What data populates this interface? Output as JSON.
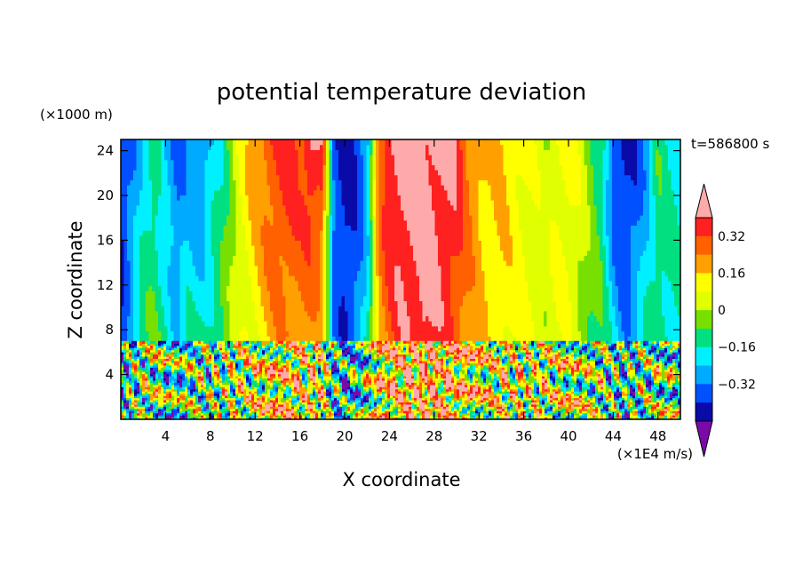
{
  "chart_data": {
    "type": "heatmap",
    "title": "potential temperature deviation",
    "xlabel": "X coordinate",
    "ylabel": "Z coordinate",
    "x_units": "(×1E4 m/s)",
    "y_units": "(×1000 m)",
    "time_label": "t=586800 s",
    "xlim": [
      0,
      50
    ],
    "ylim": [
      0,
      25
    ],
    "x_ticks": [
      4,
      8,
      12,
      16,
      20,
      24,
      28,
      32,
      36,
      40,
      44,
      48
    ],
    "y_ticks": [
      4,
      8,
      12,
      16,
      20,
      24
    ],
    "colorbar": {
      "ticks": [
        0.32,
        0.16,
        0,
        -0.16,
        -0.32
      ],
      "tick_labels": [
        "0.32",
        "0.16",
        "0",
        "−0.16",
        "−0.32"
      ],
      "levels": [
        -0.48,
        -0.4,
        -0.32,
        -0.24,
        -0.16,
        -0.08,
        0,
        0.08,
        0.16,
        0.24,
        0.32,
        0.4
      ],
      "colors": [
        "#7a0aa8",
        "#0a0aa8",
        "#0050ff",
        "#00aaff",
        "#00f0ff",
        "#00e080",
        "#78e000",
        "#e0ff00",
        "#ffff00",
        "#ffa000",
        "#ff6000",
        "#ff2020",
        "#ffaaaa"
      ],
      "extend": "both"
    },
    "upper_layer_profile": {
      "description_z_range": [
        7,
        25
      ],
      "x": [
        0,
        1,
        2,
        3,
        4,
        5,
        6,
        7,
        8,
        9,
        10,
        11,
        12,
        13,
        14,
        15,
        16,
        17,
        18,
        19,
        20,
        21,
        22,
        23,
        24,
        25,
        26,
        27,
        28,
        29,
        30,
        31,
        32,
        33,
        34,
        35,
        36,
        37,
        38,
        39,
        40,
        41,
        42,
        43,
        44,
        45,
        46,
        47,
        48,
        49,
        50
      ],
      "top_values": [
        -0.4,
        -0.36,
        -0.2,
        -0.12,
        -0.28,
        -0.36,
        -0.3,
        -0.36,
        -0.24,
        -0.16,
        0.0,
        0.12,
        0.2,
        0.3,
        0.34,
        0.36,
        0.34,
        0.42,
        0.36,
        -0.36,
        -0.44,
        -0.4,
        -0.32,
        0.24,
        0.42,
        0.46,
        0.46,
        0.44,
        0.44,
        0.42,
        0.4,
        0.26,
        0.2,
        0.14,
        0.18,
        0.14,
        0.1,
        0.06,
        0.02,
        0.1,
        0.12,
        0.06,
        -0.04,
        -0.12,
        -0.38,
        -0.44,
        -0.4,
        -0.3,
        -0.1,
        -0.16,
        -0.18
      ],
      "low_values": [
        -0.4,
        -0.2,
        -0.1,
        -0.08,
        -0.12,
        -0.24,
        -0.14,
        -0.14,
        -0.12,
        -0.06,
        0.0,
        0.06,
        0.1,
        0.14,
        0.2,
        0.22,
        0.2,
        0.18,
        0.14,
        -0.3,
        -0.4,
        -0.32,
        -0.16,
        0.2,
        0.28,
        0.36,
        0.38,
        0.44,
        0.38,
        0.34,
        0.28,
        0.22,
        0.16,
        0.12,
        0.12,
        0.1,
        0.08,
        0.06,
        0.04,
        0.06,
        0.06,
        0.0,
        -0.06,
        -0.1,
        -0.2,
        -0.3,
        -0.24,
        -0.12,
        -0.12,
        -0.14,
        -0.16
      ]
    }
  }
}
